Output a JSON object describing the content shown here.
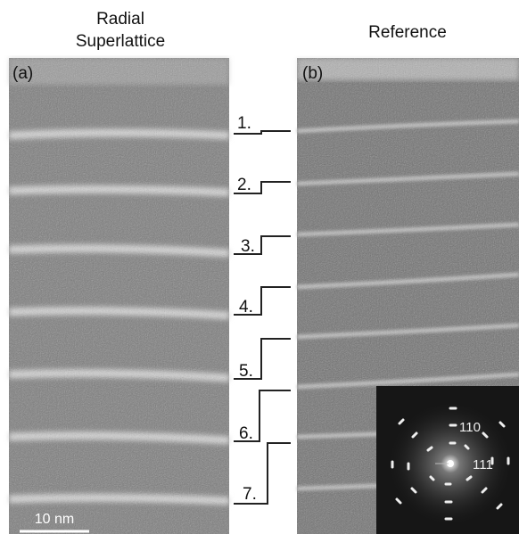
{
  "figure": {
    "panel_a": {
      "title_lines": [
        "Radial",
        "Superlattice"
      ],
      "label": "(a)",
      "scale_bar": "10 nm"
    },
    "panel_b": {
      "title": "Reference",
      "label": "(b)",
      "inset_labels": [
        "110",
        "111"
      ]
    },
    "steps": [
      "1.",
      "2.",
      "3.",
      "4.",
      "5.",
      "6.",
      "7."
    ]
  }
}
